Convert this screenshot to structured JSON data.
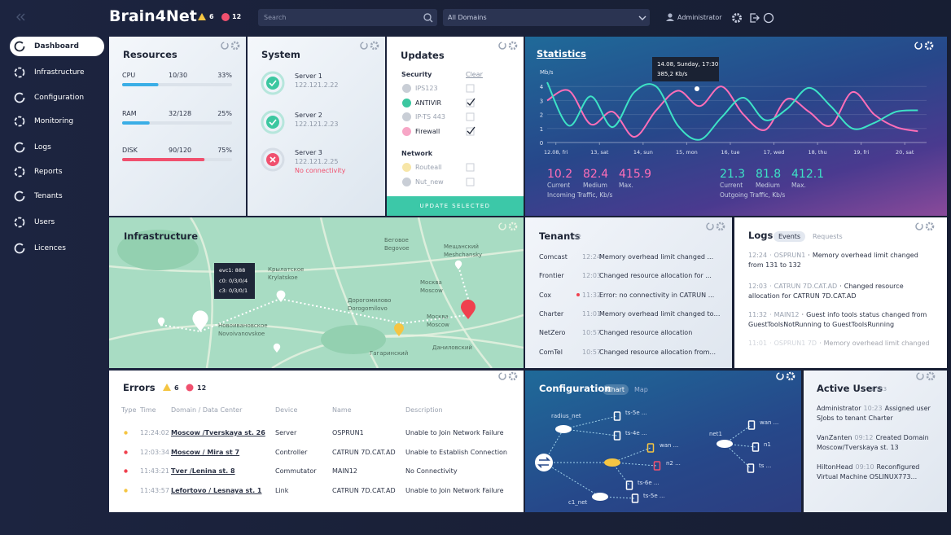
{
  "header": {
    "logo": "Brain4Net",
    "warnings": 6,
    "errors": 12,
    "search": "Search",
    "domain": "All Domains",
    "user": "Administrator"
  },
  "sidebar": {
    "items": [
      "Dashboard",
      "Infrastructure",
      "Configuration",
      "Monitoring",
      "Logs",
      "Reports",
      "Tenants",
      "Users",
      "Licences"
    ],
    "active": 0
  },
  "resources": {
    "title": "Resources",
    "rows": [
      {
        "name": "CPU",
        "usage": "10/30",
        "percent": {
          "value": 33,
          "label": "33%"
        },
        "color": "#3aaee6"
      },
      {
        "name": "RAM",
        "usage": "32/128",
        "percent": {
          "value": 25,
          "label": "25%"
        },
        "color": "#3aaee6"
      },
      {
        "name": "DISK",
        "usage": "90/120",
        "percent": {
          "value": 75,
          "label": "75%"
        },
        "color": "#f0506e"
      }
    ]
  },
  "system": {
    "title": "System",
    "servers": [
      {
        "name": "Server 1",
        "ip": "122.121.2.22",
        "status": "ok"
      },
      {
        "name": "Server 2",
        "ip": "122.121.2.23",
        "status": "ok"
      },
      {
        "name": "Server 3",
        "ip": "122.121.2.25",
        "status": "error",
        "note": "No connectivity"
      }
    ]
  },
  "updates": {
    "title": "Updates",
    "groups": [
      {
        "name": "Security",
        "action": "Clear",
        "items": [
          {
            "name": "IPS123",
            "checked": false,
            "active": false,
            "color": "#c9ced6"
          },
          {
            "name": "ANTIVIR",
            "checked": true,
            "active": true,
            "color": "#3cc7a0"
          },
          {
            "name": "IP-TS 443",
            "checked": false,
            "active": false,
            "color": "#c9ced6"
          },
          {
            "name": "Firewall",
            "checked": true,
            "active": true,
            "color": "#f7a6c6"
          }
        ]
      },
      {
        "name": "Network",
        "items": [
          {
            "name": "Routeall",
            "checked": false,
            "active": false,
            "color": "#f7e6a8"
          },
          {
            "name": "Nut_new",
            "checked": false,
            "active": false,
            "color": "#c9ced6"
          }
        ]
      }
    ],
    "button": "UPDATE SELECTED"
  },
  "statistics": {
    "title": "Statistics",
    "tooltip": {
      "date": "14.08, Sunday, 17:30",
      "value": "385,2 Kb/s"
    },
    "chart": {
      "type": "line",
      "y_label": "Mb/s",
      "x": [
        0,
        0.5,
        1,
        1.5,
        2,
        2.5,
        3,
        3.5,
        4,
        4.5,
        5,
        5.5,
        6,
        6.5,
        7,
        7.5,
        8,
        8.5
      ],
      "xlim": [
        0,
        8.7
      ],
      "ylim": [
        0,
        5
      ],
      "yticks": [
        0,
        1,
        2,
        3,
        4
      ],
      "xticks": [
        {
          "value": 0.2,
          "label": "12.08, fri"
        },
        {
          "value": 1.2,
          "label": "13, sat"
        },
        {
          "value": 2.2,
          "label": "14, sun"
        },
        {
          "value": 3.2,
          "label": "15, mon"
        },
        {
          "value": 4.2,
          "label": "16, tue"
        },
        {
          "value": 5.2,
          "label": "17, wed"
        },
        {
          "value": 6.2,
          "label": "18, thu"
        },
        {
          "value": 7.2,
          "label": "19, fri"
        },
        {
          "value": 8.2,
          "label": "20, sat"
        }
      ],
      "grid": true,
      "series": [
        {
          "color": "#ff6eb8",
          "values": [
            3.0,
            3.7,
            1.3,
            2.2,
            0.4,
            2.3,
            3.7,
            2.6,
            4.0,
            2.0,
            0.9,
            3.1,
            2.2,
            1.2,
            3.6,
            2.0,
            1.1,
            0.8
          ]
        },
        {
          "color": "#3de3c6",
          "values": [
            4.3,
            1.2,
            3.3,
            1.1,
            3.6,
            4.0,
            1.2,
            0.2,
            1.8,
            3.2,
            1.6,
            2.4,
            3.9,
            2.6,
            1.0,
            1.4,
            2.2,
            2.3
          ]
        }
      ]
    },
    "incoming": {
      "label": "Incoming Traffic, Kb/s",
      "color": "#ff6eb8",
      "stats": [
        {
          "value": 10.2,
          "name": "Current"
        },
        {
          "value": 82.4,
          "name": "Medium"
        },
        {
          "value": 415.9,
          "name": "Max."
        }
      ]
    },
    "outgoing": {
      "label": "Outgoing Traffic, Kb/s",
      "color": "#3de3c6",
      "stats": [
        {
          "value": 21.3,
          "name": "Current"
        },
        {
          "value": 81.8,
          "name": "Medium"
        },
        {
          "value": 412.1,
          "name": "Max."
        }
      ]
    }
  },
  "infrastructure": {
    "title": "Infrastructure",
    "tooltip": [
      "evc1: 888",
      "c0: 0/3/0/4",
      "c3: 0/3/0/1"
    ],
    "places": [
      "Беговое",
      "Begovoe",
      "Мещанский",
      "Meshchansky",
      "Крылатское",
      "Krylatskoe",
      "Москва",
      "Moscow",
      "Дорогомилово",
      "Dorogomilovo",
      "Москва",
      "Moscow",
      "Новоивановское",
      "Novoivanovskoe",
      "Гагаринский",
      "Даниловский"
    ]
  },
  "tenants": {
    "title": "Tenants",
    "count": 52,
    "rows": [
      {
        "name": "Comcast",
        "time": "12:24",
        "text": "Memory overhead limit changed ...",
        "alert": false
      },
      {
        "name": "Frontier",
        "time": "12:03",
        "text": "Changed resource allocation for ...",
        "alert": false
      },
      {
        "name": "Cox",
        "time": "11:32",
        "text": "Error: no connectivity in CATRUN ...",
        "alert": true
      },
      {
        "name": "Charter",
        "time": "11:01",
        "text": "Memory overhead limit changed to ...",
        "alert": false
      },
      {
        "name": "NetZero",
        "time": "10:57",
        "text": "Changed resource allocation",
        "alert": false
      },
      {
        "name": "ComTel",
        "time": "10:57",
        "text": "Changed resource allocation from...",
        "alert": false
      }
    ]
  },
  "logs": {
    "title": "Logs",
    "tabs": [
      "Events",
      "Requests"
    ],
    "active_tab": 0,
    "entries": [
      {
        "time": "12:24",
        "source": "OSPRUN1",
        "text": "Memory overhead limit changed from 131 to 132",
        "faded": false
      },
      {
        "time": "12:03",
        "source": "CATRUN 7D.CAT.AD",
        "text": "Changed resource allocation for CATRUN 7D.CAT.AD",
        "faded": false
      },
      {
        "time": "11:32",
        "source": "MAIN12",
        "text": "Guest info tools status changed from GuestToolsNotRunning to GuestToolsRunning",
        "faded": false
      },
      {
        "time": "11:01",
        "source": "OSPRUN1 7D",
        "text": "Memory overhead limit changed",
        "faded": true
      }
    ]
  },
  "errors": {
    "title": "Errors",
    "warnings": 6,
    "errors": 12,
    "columns": [
      "Type",
      "Time",
      "Domain / Data Center",
      "Device",
      "Name",
      "Description"
    ],
    "rows": [
      {
        "type": "warning",
        "time": "12:24:02",
        "domain": "Moscow /Tverskaya st. 26",
        "device": "Server",
        "name": "OSPRUN1",
        "description": "Unable to Join Network Failure"
      },
      {
        "type": "error",
        "time": "12:03:34",
        "domain": "Moscow / Mira st 7",
        "device": "Controller",
        "name": "CATRUN 7D.CAT.AD",
        "description": "Unable to Establish Connection"
      },
      {
        "type": "error",
        "time": "11:43:21",
        "domain": "Tver /Lenina st. 8",
        "device": "Commutator",
        "name": "MAIN12",
        "description": "No Connectivity"
      },
      {
        "type": "warning",
        "time": "11:43:57",
        "domain": "Lefortovo / Lesnaya st. 1",
        "device": "Link",
        "name": "CATRUN 7D.CAT.AD",
        "description": "Unable to Join Network Failure"
      }
    ]
  },
  "configuration": {
    "title": "Configuration",
    "tabs": [
      "Chart",
      "Map"
    ],
    "active_tab": 0,
    "nodes": [
      {
        "label": "radius_net",
        "kind": "cloud",
        "color": "#ffffff"
      },
      {
        "label": "ts-5e ...",
        "kind": "server",
        "color": "#ffffff"
      },
      {
        "label": "ts-4e ...",
        "kind": "server",
        "color": "#ffffff"
      },
      {
        "label": "wan ...",
        "kind": "server",
        "color": "#f5c542"
      },
      {
        "label": "n2 ...",
        "kind": "server",
        "color": "#f0506e"
      },
      {
        "label": "ts-6e ...",
        "kind": "server",
        "color": "#ffffff"
      },
      {
        "label": "ts-5e ...",
        "kind": "server",
        "color": "#ffffff"
      },
      {
        "label": "c1_net",
        "kind": "cloud",
        "color": "#ffffff"
      },
      {
        "label": "net1",
        "kind": "cloud",
        "color": "#ffffff"
      },
      {
        "label": "wan ...",
        "kind": "server",
        "color": "#ffffff"
      },
      {
        "label": "n1",
        "kind": "server",
        "color": "#ffffff"
      },
      {
        "label": "ts ...",
        "kind": "server",
        "color": "#ffffff"
      }
    ]
  },
  "active_users": {
    "title": "Active Users",
    "count": "1 783",
    "entries": [
      {
        "user": "Administrator",
        "time": "10:23",
        "text": "Assigned user SJobs to tenant Charter"
      },
      {
        "user": "VanZanten",
        "time": "09:12",
        "text": "Created Domain Moscow/Tverskaya st. 13"
      },
      {
        "user": "HiltonHead",
        "time": "09:10",
        "text": "Reconfigured Virtual Machine OSLINUX773..."
      }
    ]
  }
}
